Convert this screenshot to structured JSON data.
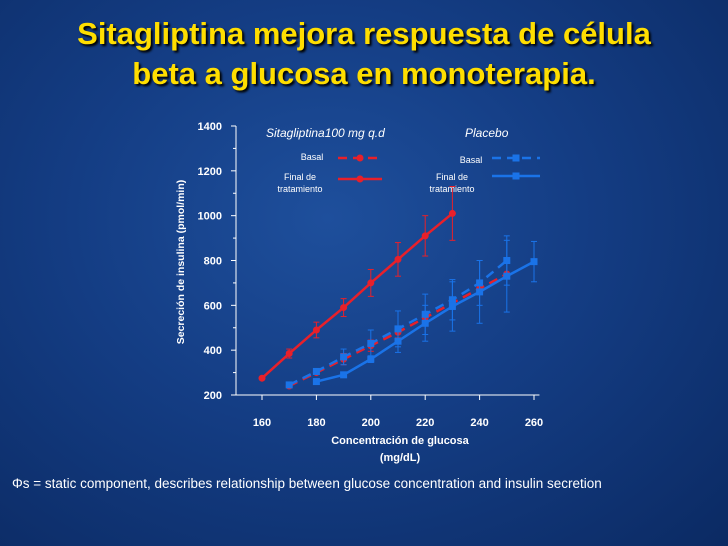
{
  "slide": {
    "title_line1": "Sitagliptina mejora respuesta de célula",
    "title_line2": "beta a glucosa en monoterapia.",
    "footnote": "Φs = static component, describes relationship between glucose concentration and insulin secretion"
  },
  "colors": {
    "background": "#143d84",
    "title": "#ffde00",
    "sitagliptin": "#e8202a",
    "placebo": "#1a73e8",
    "text": "#ffffff"
  },
  "chart_data": {
    "type": "line",
    "xlabel_line1": "Concentración de glucosa",
    "xlabel_line2": "(mg/dL)",
    "ylabel": "Secreción de insulina (pmol/min)",
    "xlim": [
      150,
      262
    ],
    "ylim": [
      200,
      1400
    ],
    "xticks": [
      160,
      180,
      200,
      220,
      240,
      260
    ],
    "yticks": [
      200,
      400,
      600,
      800,
      1000,
      1200,
      1400
    ],
    "legend": {
      "sitagliptin_header": "Sitagliptina100 mg q.d",
      "placebo_header": "Placebo",
      "basal_label": "Basal",
      "final_label_line1": "Final de",
      "final_label_line2": "tratamiento"
    },
    "series": [
      {
        "group": "sitagliptin",
        "style": "dashed",
        "marker": "circle",
        "x": [
          170,
          180,
          190,
          200,
          210,
          220,
          230,
          240,
          250
        ],
        "y": [
          240,
          300,
          360,
          420,
          480,
          545,
          610,
          675,
          740
        ],
        "err": [
          0,
          0,
          25,
          25,
          25,
          0,
          0,
          0,
          0
        ]
      },
      {
        "group": "sitagliptin",
        "style": "solid",
        "marker": "circle",
        "x": [
          160,
          170,
          180,
          190,
          200,
          210,
          220,
          230
        ],
        "y": [
          275,
          385,
          490,
          590,
          700,
          805,
          910,
          1010
        ],
        "err": [
          0,
          20,
          35,
          40,
          60,
          75,
          90,
          120
        ]
      },
      {
        "group": "placebo",
        "style": "dashed",
        "marker": "square",
        "x": [
          170,
          180,
          190,
          200,
          210,
          220,
          230,
          240,
          250
        ],
        "y": [
          245,
          305,
          370,
          430,
          495,
          560,
          625,
          700,
          800
        ],
        "err": [
          0,
          0,
          35,
          60,
          80,
          90,
          90,
          100,
          110
        ]
      },
      {
        "group": "placebo",
        "style": "solid",
        "marker": "square",
        "x": [
          180,
          190,
          200,
          210,
          220,
          230,
          240,
          250,
          260
        ],
        "y": [
          260,
          290,
          360,
          440,
          520,
          595,
          660,
          730,
          795
        ],
        "err": [
          0,
          0,
          15,
          50,
          80,
          110,
          140,
          160,
          90
        ]
      }
    ]
  }
}
